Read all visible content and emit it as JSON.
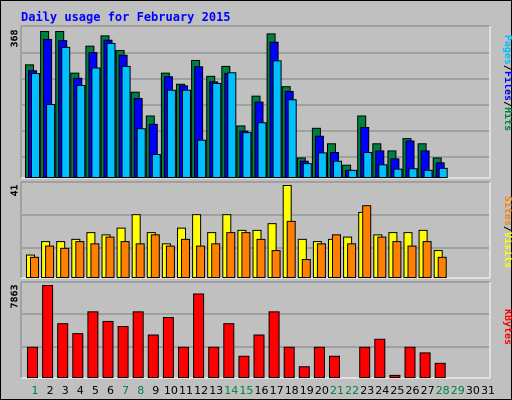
{
  "chart_data": [
    {
      "type": "bar",
      "title": "Daily usage for February 2015",
      "max_label": "368",
      "ylim": [
        0,
        368
      ],
      "categories": [
        "1",
        "2",
        "3",
        "4",
        "5",
        "6",
        "7",
        "8",
        "9",
        "10",
        "11",
        "12",
        "13",
        "14",
        "15",
        "16",
        "17",
        "18",
        "19",
        "20",
        "21",
        "22",
        "23",
        "24",
        "25",
        "26",
        "27",
        "28",
        "29",
        "30",
        "31"
      ],
      "weekend_days": [
        "1",
        "7",
        "8",
        "14",
        "15",
        "21",
        "22",
        "28",
        "29"
      ],
      "series": [
        {
          "name": "Hits",
          "color": "#008040",
          "values": [
            284,
            368,
            368,
            263,
            331,
            357,
            320,
            215,
            155,
            263,
            235,
            295,
            255,
            280,
            130,
            205,
            362,
            229,
            49,
            124,
            85,
            31,
            155,
            85,
            67,
            98,
            85,
            49,
            0,
            0,
            0
          ]
        },
        {
          "name": "Files",
          "color": "#0000ff",
          "values": [
            269,
            348,
            345,
            250,
            315,
            346,
            308,
            199,
            134,
            254,
            231,
            279,
            241,
            262,
            117,
            190,
            341,
            217,
            41,
            104,
            63,
            18,
            126,
            67,
            47,
            92,
            67,
            37,
            0,
            0,
            0
          ]
        },
        {
          "name": "Pages",
          "color": "#00bfff",
          "values": [
            262,
            184,
            328,
            232,
            276,
            338,
            280,
            123,
            58,
            220,
            220,
            94,
            237,
            264,
            113,
            138,
            294,
            196,
            35,
            62,
            41,
            18,
            63,
            32,
            21,
            22,
            18,
            23,
            0,
            0,
            0
          ]
        }
      ],
      "series_labels": [
        "Pages",
        "/",
        "Files",
        "/",
        "Hits"
      ]
    },
    {
      "type": "bar",
      "max_label": "41",
      "ylim": [
        0,
        41
      ],
      "categories": [
        "1",
        "2",
        "3",
        "4",
        "5",
        "6",
        "7",
        "8",
        "9",
        "10",
        "11",
        "12",
        "13",
        "14",
        "15",
        "16",
        "17",
        "18",
        "19",
        "20",
        "21",
        "22",
        "23",
        "24",
        "25",
        "26",
        "27",
        "28",
        "29",
        "30",
        "31"
      ],
      "series": [
        {
          "name": "Visits",
          "color": "#ffff00",
          "values": [
            10,
            16,
            16,
            17,
            20,
            19,
            22,
            28,
            20,
            15,
            22,
            28,
            20,
            28,
            21,
            21,
            24,
            41,
            17,
            16,
            17,
            18,
            29,
            19,
            20,
            20,
            21,
            12,
            0,
            0,
            0
          ]
        },
        {
          "name": "Sites",
          "color": "#ff8000",
          "values": [
            9,
            14,
            13,
            16,
            15,
            18,
            16,
            15,
            19,
            14,
            17,
            14,
            15,
            20,
            20,
            17,
            12,
            25,
            8,
            15,
            19,
            15,
            32,
            18,
            16,
            14,
            16,
            9,
            0,
            0,
            0
          ]
        }
      ],
      "series_labels": [
        "Sites",
        "/",
        "Visits"
      ]
    },
    {
      "type": "bar",
      "max_label": "7863",
      "ylim": [
        0,
        7863
      ],
      "categories": [
        "1",
        "2",
        "3",
        "4",
        "5",
        "6",
        "7",
        "8",
        "9",
        "10",
        "11",
        "12",
        "13",
        "14",
        "15",
        "16",
        "17",
        "18",
        "19",
        "20",
        "21",
        "22",
        "23",
        "24",
        "25",
        "26",
        "27",
        "28",
        "29",
        "30",
        "31"
      ],
      "series": [
        {
          "name": "KBytes",
          "color": "#ff0000",
          "values": [
            2588,
            7863,
            4599,
            3750,
            5614,
            4791,
            4355,
            5614,
            3631,
            5128,
            2588,
            7137,
            2588,
            4599,
            1815,
            3631,
            5614,
            2588,
            920,
            2588,
            1815,
            0,
            2588,
            3267,
            181,
            2588,
            2104,
            1210,
            0,
            0,
            0
          ]
        }
      ],
      "series_labels": [
        "KBytes"
      ]
    }
  ]
}
